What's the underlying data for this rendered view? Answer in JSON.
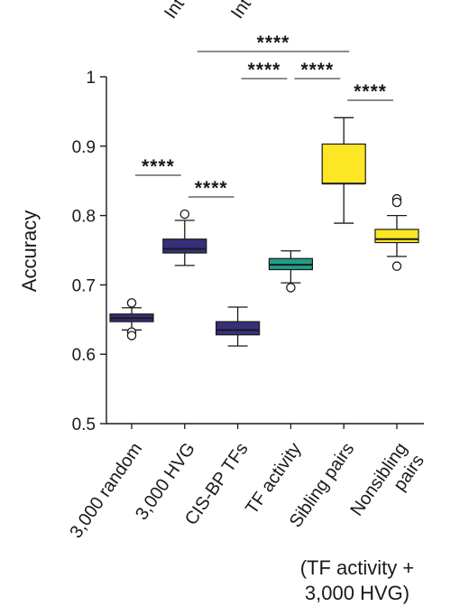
{
  "chart_data": {
    "type": "box",
    "ylabel": "Accuracy",
    "ylim": [
      0.5,
      1.0
    ],
    "yticks": [
      {
        "value": 0.5,
        "label": "0.5"
      },
      {
        "value": 0.6,
        "label": "0.6"
      },
      {
        "value": 0.7,
        "label": "0.7"
      },
      {
        "value": 0.8,
        "label": "0.8"
      },
      {
        "value": 0.9,
        "label": "0.9"
      },
      {
        "value": 1.0,
        "label": "1"
      }
    ],
    "categories": [
      "3,000 random",
      "3,000 HVG",
      "CIS-BP TFs",
      "TF activity",
      "Sibling pairs",
      "Nonsibling pairs"
    ],
    "category_lines": [
      [
        "3,000 random"
      ],
      [
        "3,000 HVG"
      ],
      [
        "CIS-BP TFs"
      ],
      [
        "TF activity"
      ],
      [
        "Sibling pairs"
      ],
      [
        "Nonsibling",
        "pairs"
      ]
    ],
    "boxes": [
      {
        "category": "3,000 random",
        "whisker_low": 0.635,
        "q1": 0.647,
        "median": 0.652,
        "q3": 0.658,
        "whisker_high": 0.667,
        "outliers": [
          0.674,
          0.632,
          0.627
        ],
        "color": "#36307a"
      },
      {
        "category": "3,000 HVG",
        "whisker_low": 0.728,
        "q1": 0.746,
        "median": 0.752,
        "q3": 0.766,
        "whisker_high": 0.793,
        "outliers": [
          0.802
        ],
        "color": "#36307a"
      },
      {
        "category": "CIS-BP TFs",
        "whisker_low": 0.612,
        "q1": 0.628,
        "median": 0.635,
        "q3": 0.647,
        "whisker_high": 0.668,
        "outliers": [],
        "color": "#36307a"
      },
      {
        "category": "TF activity",
        "whisker_low": 0.703,
        "q1": 0.722,
        "median": 0.729,
        "q3": 0.738,
        "whisker_high": 0.749,
        "outliers": [
          0.696
        ],
        "color": "#1f9e89"
      },
      {
        "category": "Sibling pairs",
        "whisker_low": 0.789,
        "q1": 0.846,
        "median": 0.846,
        "q3": 0.903,
        "whisker_high": 0.941,
        "outliers": [],
        "color": "#fde725"
      },
      {
        "category": "Nonsibling pairs",
        "whisker_low": 0.741,
        "q1": 0.761,
        "median": 0.766,
        "q3": 0.78,
        "whisker_high": 0.8,
        "outliers": [
          0.824,
          0.819,
          0.727
        ],
        "color": "#fde725"
      }
    ],
    "significance": [
      {
        "from": 0,
        "to": 1,
        "label": "****"
      },
      {
        "from": 1,
        "to": 2,
        "label": "****"
      },
      {
        "from": 2,
        "to": 3,
        "label": "****"
      },
      {
        "from": 3,
        "to": 4,
        "label": "****"
      },
      {
        "from": 4,
        "to": 5,
        "label": "****"
      },
      {
        "from": 1,
        "to": 4,
        "label": "****"
      }
    ],
    "footnote": [
      "(TF activity +",
      "3,000 HVG)"
    ],
    "top_fragments": [
      "Int",
      "Int"
    ]
  }
}
